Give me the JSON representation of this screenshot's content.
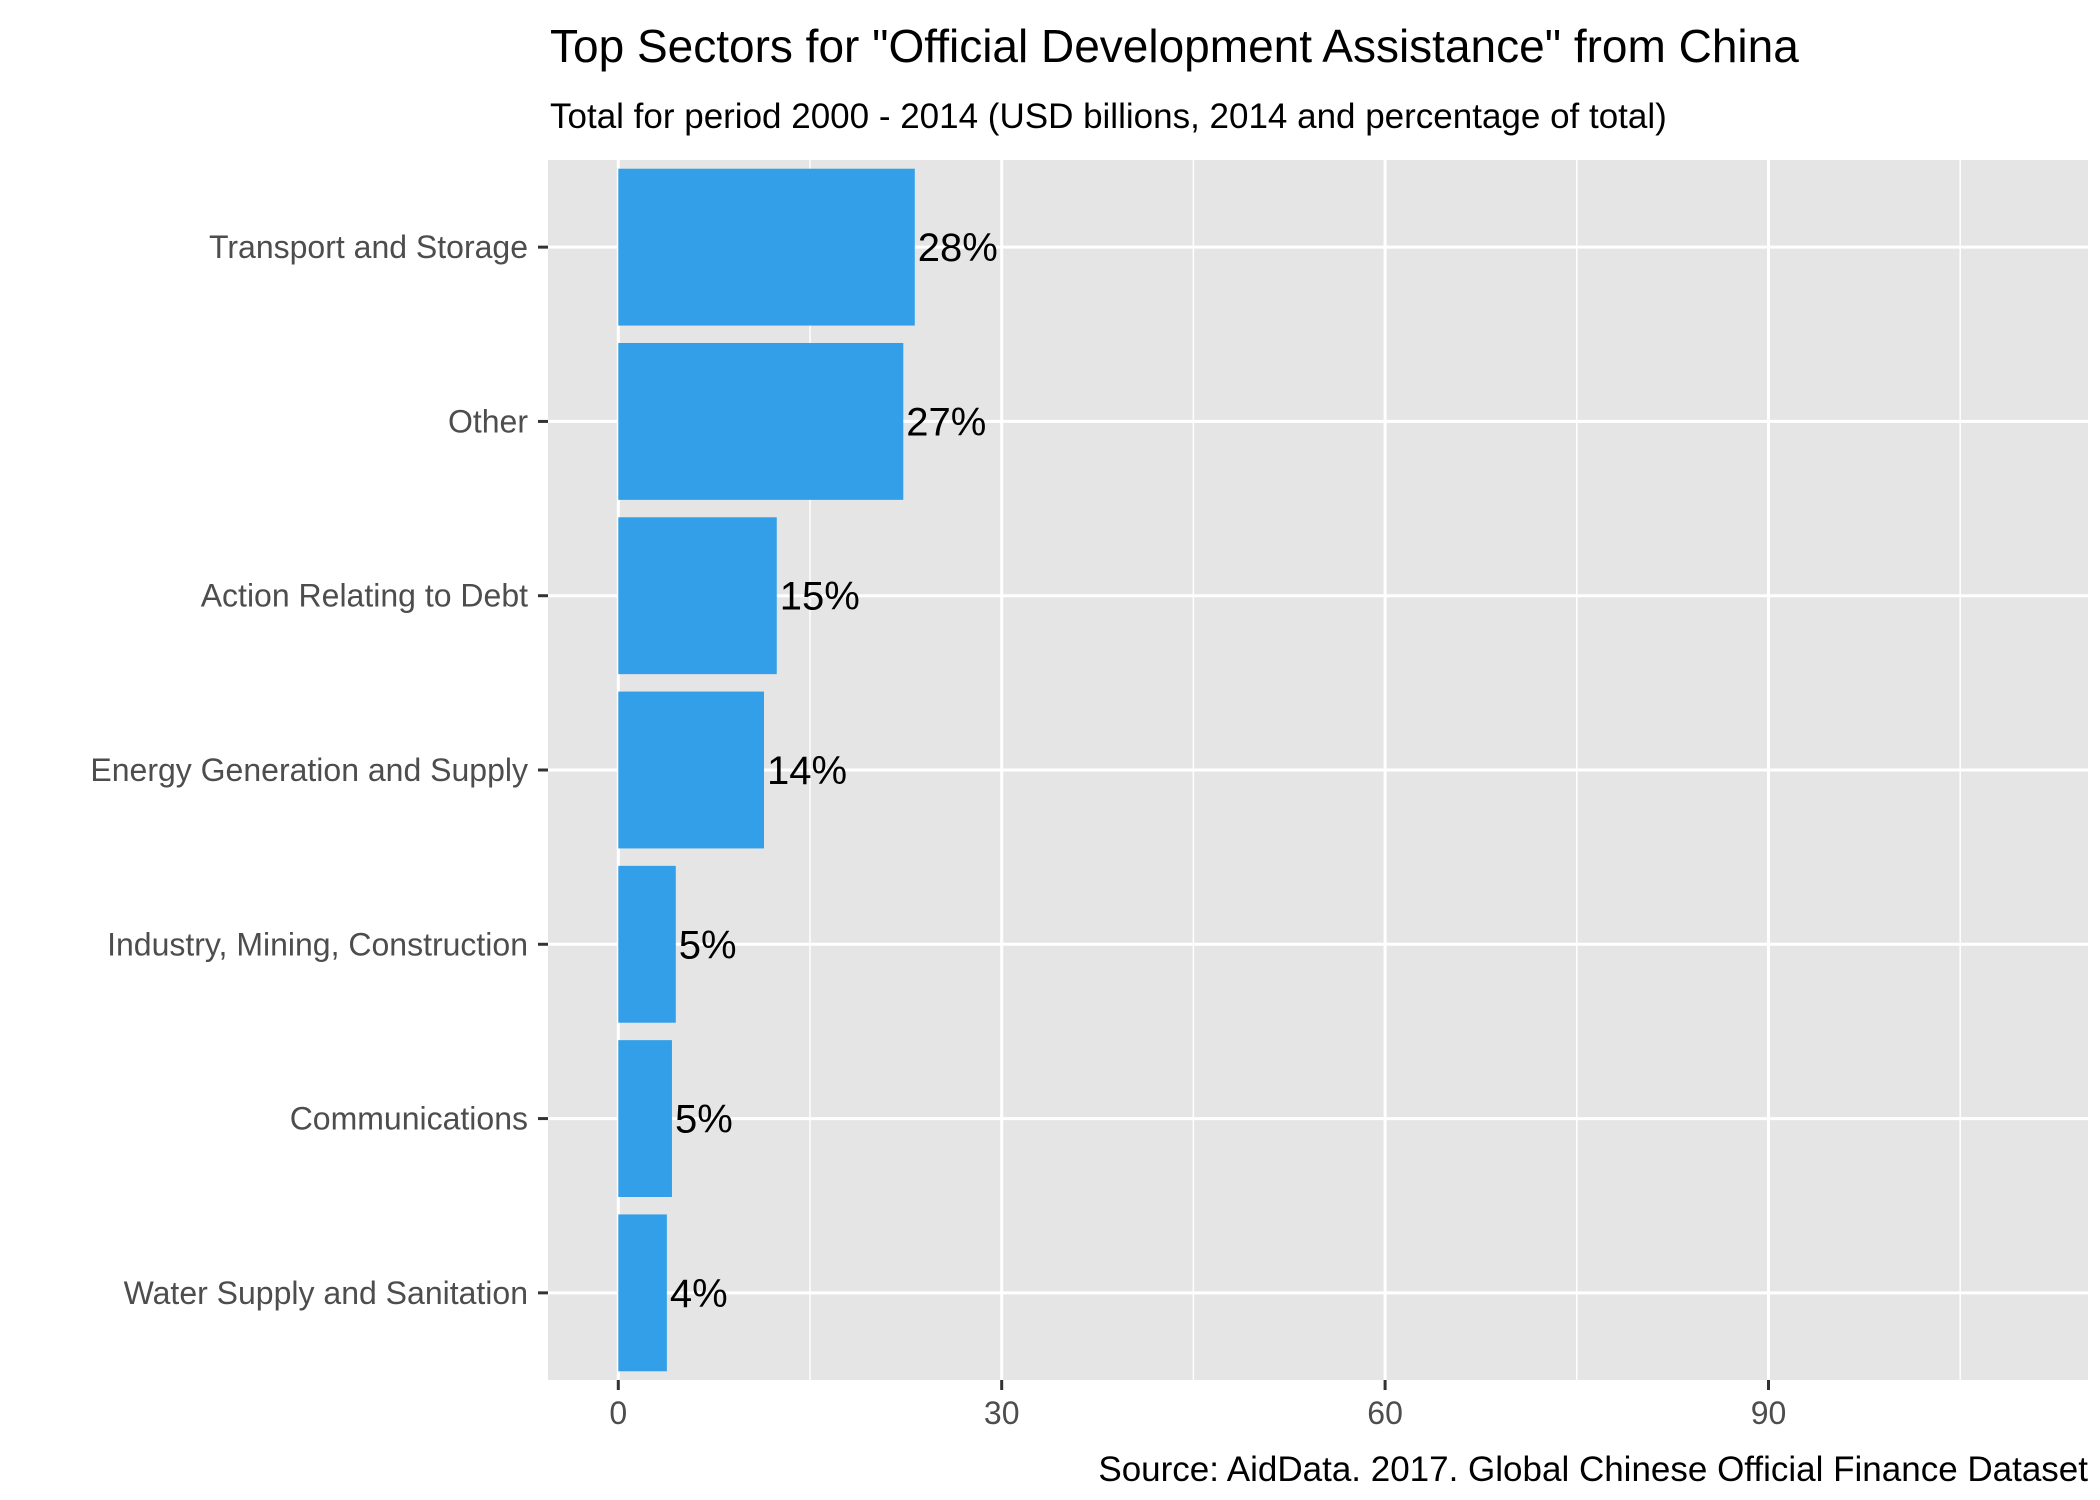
{
  "chart_data": {
    "type": "bar",
    "orientation": "horizontal",
    "title": "Top Sectors for \"Official Development Assistance\" from China",
    "subtitle": "Total for period 2000 - 2014 (USD billions, 2014 and percentage of total)",
    "caption": "Source: AidData. 2017. Global Chinese Official Finance Dataset",
    "xlabel": "",
    "ylabel": "",
    "categories": [
      "Transport and Storage",
      "Other",
      "Action Relating to Debt",
      "Energy Generation and Supply",
      "Industry, Mining, Construction",
      "Communications",
      "Water Supply and Sanitation"
    ],
    "values": [
      23.2,
      22.3,
      12.4,
      11.4,
      4.5,
      4.2,
      3.8
    ],
    "labels": [
      "28%",
      "27%",
      "15%",
      "14%",
      "5%",
      "5%",
      "4%"
    ],
    "xlim": [
      -5.5,
      115
    ],
    "x_ticks": [
      0,
      30,
      60,
      90
    ],
    "x_tick_labels": [
      "0",
      "30",
      "60",
      "90"
    ],
    "x_minor_ticks": [
      15,
      45,
      75,
      105
    ],
    "grid": true,
    "bar_color": "#329fe8",
    "panel_background": "#e5e5e5",
    "gridline_color": "#ffffff"
  }
}
